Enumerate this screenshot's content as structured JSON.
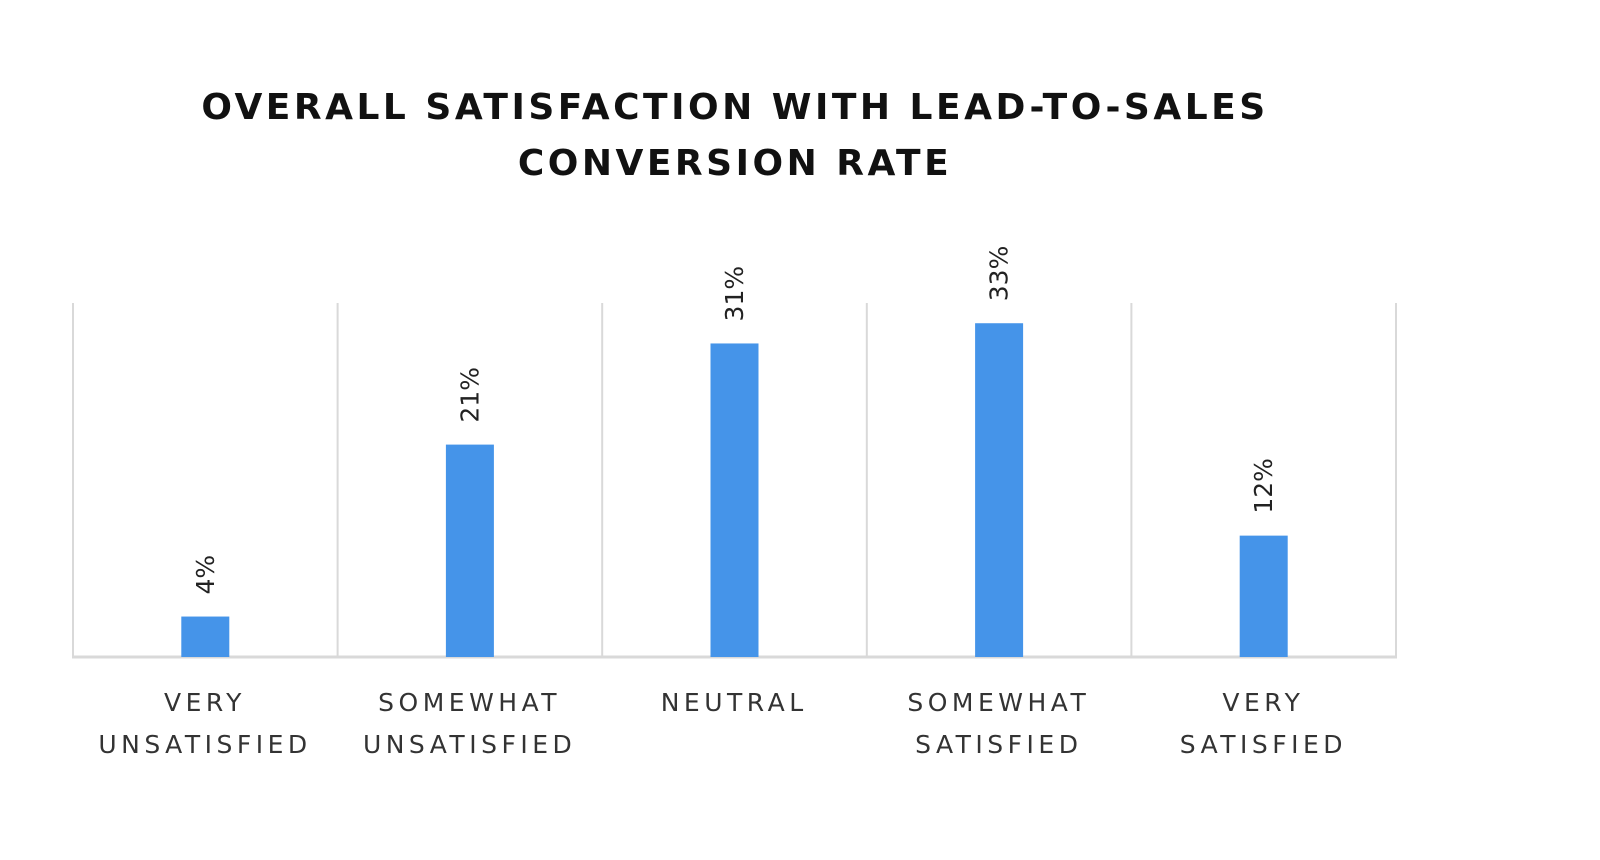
{
  "chart_data": {
    "type": "bar",
    "title": [
      "OVERALL SATISFACTION WITH LEAD-TO-SALES",
      "CONVERSION RATE"
    ],
    "categories": [
      [
        "VERY",
        "UNSATISFIED"
      ],
      [
        "SOMEWHAT",
        "UNSATISFIED"
      ],
      [
        "NEUTRAL"
      ],
      [
        "SOMEWHAT",
        "SATISFIED"
      ],
      [
        "VERY",
        "SATISFIED"
      ]
    ],
    "values": [
      4,
      21,
      31,
      33,
      12
    ],
    "data_labels": [
      "4%",
      "21%",
      "31%",
      "33%",
      "12%"
    ],
    "xlabel": "",
    "ylabel": "",
    "ylim": [
      0,
      35
    ],
    "grid": "vertical category separators",
    "legend": "none",
    "colors": {
      "bar": "#4594E9",
      "grid": "#D9D9D9",
      "text": "#333333"
    }
  }
}
